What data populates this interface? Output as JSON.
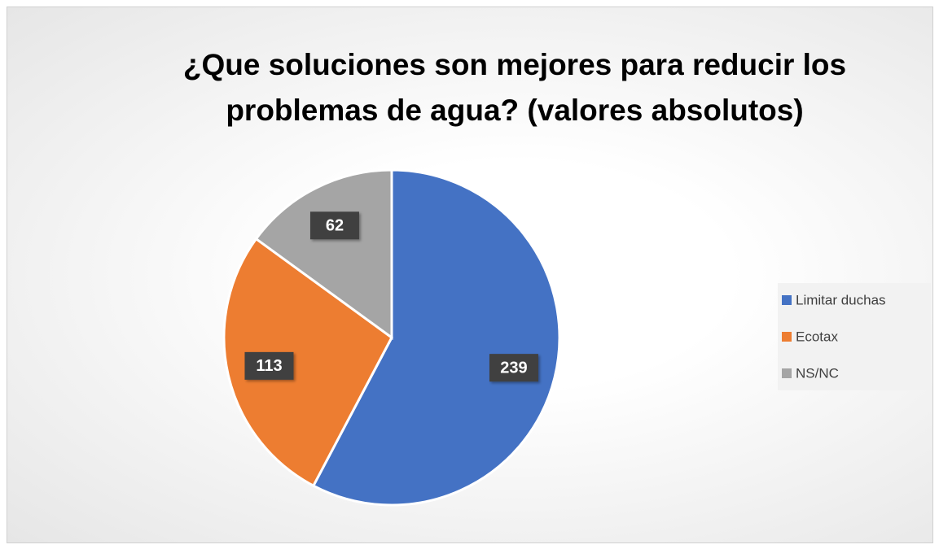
{
  "chart_data": {
    "type": "pie",
    "title": "¿Que soluciones son mejores para reducir los problemas de agua? (valores absolutos)",
    "categories": [
      "Limitar duchas",
      "Ecotax",
      "NS/NC"
    ],
    "values": [
      239,
      113,
      62
    ],
    "colors": [
      "#4472c4",
      "#ed7d31",
      "#a5a5a5"
    ],
    "legend": "right"
  }
}
